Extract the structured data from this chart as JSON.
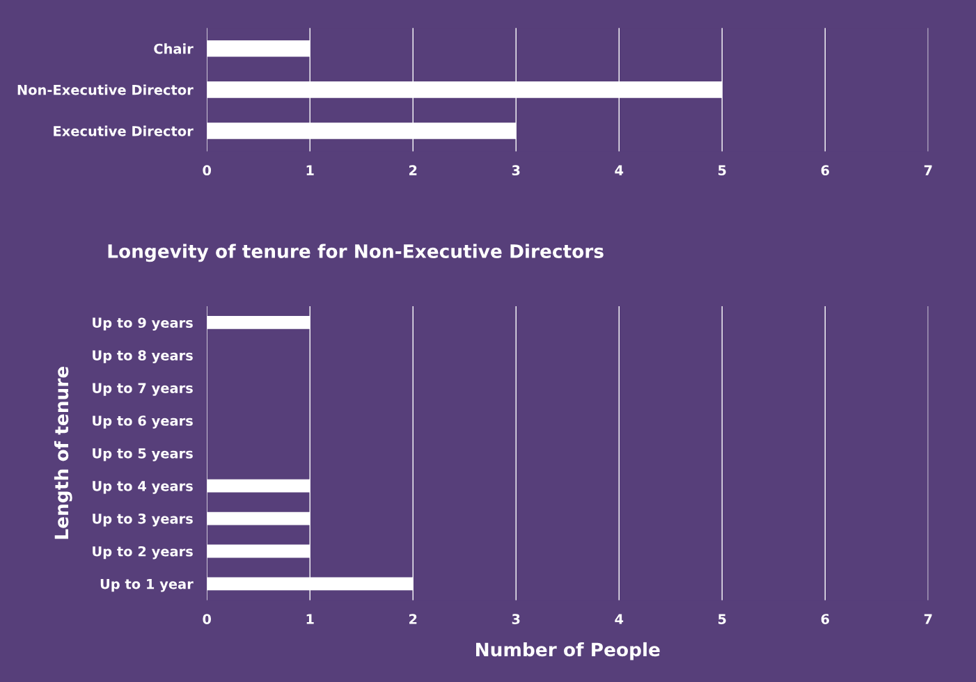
{
  "chart_data": [
    {
      "type": "bar",
      "orientation": "horizontal",
      "categories": [
        "Chair",
        "Non-Executive Director",
        "Executive Director"
      ],
      "values": [
        1,
        5,
        3
      ],
      "color": "#ffffff",
      "xlim": [
        0,
        7
      ],
      "xticks": [
        0,
        1,
        2,
        3,
        4,
        5,
        6,
        7
      ],
      "grid": "x"
    },
    {
      "type": "bar",
      "orientation": "horizontal",
      "title": "Longevity of tenure for Non-Executive Directors",
      "xlabel": "Number of People",
      "ylabel": "Length of tenure",
      "categories": [
        "Up to 9 years",
        "Up to 8 years",
        "Up to 7 years",
        "Up to 6 years",
        "Up to 5 years",
        "Up to 4 years",
        "Up to 3 years",
        "Up to 2 years",
        "Up to 1 year"
      ],
      "values": [
        1,
        0,
        0,
        0,
        0,
        1,
        1,
        1,
        2
      ],
      "color": "#ffffff",
      "xlim": [
        0,
        7
      ],
      "xticks": [
        0,
        1,
        2,
        3,
        4,
        5,
        6,
        7
      ],
      "grid": "x"
    }
  ]
}
